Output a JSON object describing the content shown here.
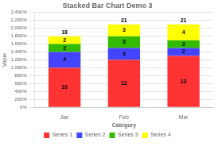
{
  "chart_data": {
    "type": "bar",
    "stacked": true,
    "title": "Stacked Bar Chart Demo 3",
    "xlabel": "Category",
    "ylabel": "Value",
    "categories": [
      "Jan",
      "Feb",
      "Mar"
    ],
    "series": [
      {
        "name": "Series 1",
        "values": [
          10,
          12,
          13
        ],
        "color": "#FF3333"
      },
      {
        "name": "Series 2",
        "values": [
          4,
          3,
          2
        ],
        "color": "#4444FF"
      },
      {
        "name": "Series 3",
        "values": [
          2,
          3,
          2
        ],
        "color": "#33BB00"
      },
      {
        "name": "Series 4",
        "values": [
          2,
          3,
          4
        ],
        "color": "#FFFF00"
      }
    ],
    "totals": [
      18,
      21,
      21
    ],
    "ylim": [
      0,
      24
    ],
    "yticks": [
      {
        "value": 0,
        "label": "0%"
      },
      {
        "value": 2,
        "label": "200%"
      },
      {
        "value": 4,
        "label": "400%"
      },
      {
        "value": 6,
        "label": "600%"
      },
      {
        "value": 8,
        "label": "800%"
      },
      {
        "value": 10,
        "label": "1,000%"
      },
      {
        "value": 12,
        "label": "1,200%"
      },
      {
        "value": 14,
        "label": "1,400%"
      },
      {
        "value": 16,
        "label": "1,600%"
      },
      {
        "value": 18,
        "label": "1,800%"
      },
      {
        "value": 20,
        "label": "2,000%"
      },
      {
        "value": 22,
        "label": "2,200%"
      },
      {
        "value": 24,
        "label": "2,400%"
      }
    ],
    "grid": true,
    "legend": "bottom",
    "data_labels": true
  }
}
